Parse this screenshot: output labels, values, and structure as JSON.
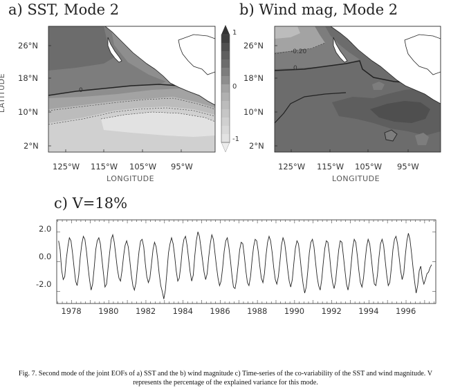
{
  "panel_a": {
    "title": "a) SST, Mode 2",
    "xlabel": "LONGITUDE",
    "ylabel": "LATITUDE",
    "lat_ticks": [
      "26°N",
      "18°N",
      "10°N",
      "2°N"
    ],
    "lon_ticks": [
      "125°W",
      "115°W",
      "105°W",
      "95°W"
    ],
    "contour_labels": [
      "0"
    ]
  },
  "panel_b": {
    "title": "b) Wind mag, Mode 2",
    "xlabel": "LONGITUDE",
    "lat_ticks": [
      "26°N",
      "18°N",
      "10°N",
      "2°N"
    ],
    "lon_ticks": [
      "125°W",
      "115°W",
      "105°W",
      "95°W"
    ],
    "contour_labels": [
      "-0.20",
      "0"
    ]
  },
  "colorbar": {
    "labels": [
      "1",
      "0",
      "-1"
    ],
    "range": [
      -1,
      1
    ]
  },
  "panel_c": {
    "title": "c) V=18%",
    "y_ticks": [
      "2.0",
      "0.0",
      "-2.0"
    ],
    "x_ticks": [
      "1978",
      "1980",
      "1982",
      "1984",
      "1986",
      "1988",
      "1990",
      "1992",
      "1994",
      "1996"
    ]
  },
  "chart_data": {
    "type": "line",
    "title": "c) V=18%",
    "xlabel": "",
    "ylabel": "",
    "xlim": [
      1977.2,
      1997.6
    ],
    "ylim": [
      -2.8,
      2.8
    ],
    "x_start": 1977.3,
    "x_step": 0.0833,
    "series": [
      {
        "values": [
          1.4,
          0.8,
          -0.6,
          -1.2,
          -1.0,
          0.2,
          1.0,
          1.6,
          1.4,
          0.6,
          -0.4,
          -1.3,
          -1.6,
          -0.9,
          0.3,
          1.2,
          1.7,
          1.5,
          0.7,
          -0.3,
          -1.2,
          -1.9,
          -1.5,
          -0.4,
          0.8,
          1.4,
          1.6,
          1.2,
          0.2,
          -0.8,
          -1.7,
          -1.5,
          -0.4,
          0.6,
          1.5,
          1.8,
          1.3,
          0.4,
          -0.5,
          -1.1,
          -1.3,
          -0.6,
          0.4,
          1.1,
          1.4,
          1.0,
          0.1,
          -0.9,
          -1.6,
          -1.9,
          -1.4,
          -0.3,
          0.7,
          1.4,
          1.5,
          1.0,
          -0.1,
          -1.0,
          -1.4,
          -1.1,
          -0.2,
          0.8,
          1.3,
          1.0,
          0.2,
          -0.8,
          -1.6,
          -2.0,
          -2.5,
          -1.9,
          -0.7,
          0.6,
          1.2,
          1.6,
          1.2,
          0.4,
          -0.6,
          -1.3,
          -1.1,
          -0.2,
          0.9,
          1.5,
          1.7,
          1.1,
          0.2,
          -0.7,
          -1.3,
          -0.9,
          0.4,
          1.4,
          2.0,
          1.7,
          0.9,
          0.1,
          -0.7,
          -1.2,
          -0.8,
          0.3,
          1.2,
          1.8,
          1.5,
          0.6,
          -0.3,
          -1.1,
          -1.6,
          -1.3,
          -0.4,
          0.7,
          1.4,
          1.6,
          1.0,
          0.1,
          -0.9,
          -1.7,
          -1.8,
          -1.2,
          -0.2,
          0.8,
          1.3,
          1.2,
          0.4,
          -0.6,
          -1.4,
          -1.6,
          -1.0,
          0.1,
          1.0,
          1.5,
          1.4,
          0.7,
          -0.3,
          -1.1,
          -1.4,
          -0.8,
          0.4,
          1.3,
          1.7,
          1.4,
          0.6,
          -0.4,
          -1.2,
          -1.5,
          -1.0,
          0.0,
          1.1,
          1.6,
          1.3,
          0.5,
          -0.5,
          -1.3,
          -1.7,
          -1.2,
          -0.1,
          0.9,
          1.4,
          1.2,
          0.3,
          -0.7,
          -1.5,
          -2.1,
          -1.7,
          -0.6,
          0.6,
          1.3,
          1.5,
          1.0,
          0.0,
          -1.0,
          -1.6,
          -1.9,
          -1.2,
          -0.1,
          0.9,
          1.4,
          1.3,
          0.5,
          -0.6,
          -1.4,
          -1.8,
          -1.3,
          -0.2,
          0.8,
          1.4,
          1.3,
          0.4,
          -0.6,
          -1.5,
          -1.9,
          -1.3,
          -0.2,
          0.9,
          1.5,
          1.3,
          0.4,
          -0.6,
          -1.4,
          -1.7,
          -1.1,
          0.0,
          1.0,
          1.5,
          1.2,
          0.3,
          -0.7,
          -1.5,
          -1.6,
          -0.9,
          0.3,
          1.2,
          1.5,
          1.1,
          0.1,
          -0.9,
          -1.6,
          -1.4,
          -0.4,
          0.8,
          1.5,
          1.7,
          1.2,
          0.3,
          -0.6,
          -1.2,
          -0.8,
          0.4,
          1.4,
          1.9,
          1.5,
          0.6,
          -0.4,
          -1.3,
          -2.1,
          -1.6,
          -0.6,
          -0.3,
          -1.1,
          -1.5,
          -1.2,
          -0.8,
          -0.7,
          -0.4,
          -0.2
        ]
      }
    ],
    "grid": false
  },
  "caption": "Fig. 7. Second mode of the joint EOFs of a) SST and the b) wind magnitude c) Time-series of the co-variability of the SST and wind magnitude. V represents the percentage of the explained variance for this mode.",
  "colors": {
    "darkest": "#4f4f4f",
    "dark": "#6c6c6c",
    "mid_dark": "#7d7d7d",
    "mid": "#8e8e8e",
    "mid_light": "#a3a3a3",
    "light": "#bcbcbc",
    "lighter": "#d0d0d0",
    "lightest": "#e2e2e2",
    "land": "#ffffff"
  }
}
